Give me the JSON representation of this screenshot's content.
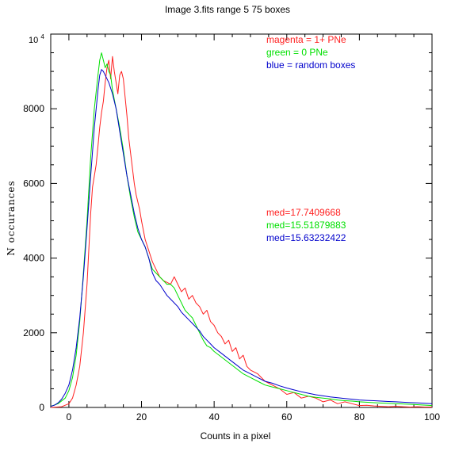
{
  "chart_data": {
    "type": "line",
    "title": "Image 3.fits   range 5    75 boxes",
    "xlabel": "Counts in a pixel",
    "ylabel": "N occurances",
    "xlim": [
      -5,
      100
    ],
    "ylim": [
      0,
      10000
    ],
    "x_ticks": [
      0,
      20,
      40,
      60,
      80,
      100
    ],
    "y_ticks": [
      0,
      2000,
      4000,
      6000,
      8000
    ],
    "y_top_label": {
      "base": "10",
      "exp": "4"
    },
    "grid": false,
    "legend_position": "top-right",
    "legend": [
      {
        "text": "magenta = 1+ PNe",
        "color": "#ff2020"
      },
      {
        "text": "green = 0 PNe",
        "color": "#00e000"
      },
      {
        "text": "blue = random boxes",
        "color": "#0000cc"
      }
    ],
    "annotations": [
      {
        "text": "med=17.7409668",
        "color": "#ff2020"
      },
      {
        "text": "med=15.51879883",
        "color": "#00e000"
      },
      {
        "text": "med=15.63232422",
        "color": "#0000cc"
      }
    ],
    "series": [
      {
        "color": "#ff2020",
        "points": [
          [
            -5,
            0
          ],
          [
            -2,
            20
          ],
          [
            0,
            100
          ],
          [
            1,
            250
          ],
          [
            2,
            600
          ],
          [
            3,
            1100
          ],
          [
            4,
            2000
          ],
          [
            5,
            3300
          ],
          [
            6,
            5200
          ],
          [
            6.5,
            5900
          ],
          [
            7,
            6200
          ],
          [
            7.5,
            6500
          ],
          [
            8,
            7000
          ],
          [
            8.5,
            7500
          ],
          [
            9,
            7900
          ],
          [
            9.5,
            8200
          ],
          [
            10,
            8700
          ],
          [
            10.5,
            9100
          ],
          [
            11,
            9300
          ],
          [
            11.5,
            8800
          ],
          [
            12,
            9400
          ],
          [
            12.5,
            9000
          ],
          [
            13,
            8700
          ],
          [
            13.5,
            8400
          ],
          [
            14,
            8900
          ],
          [
            14.5,
            9000
          ],
          [
            15,
            8800
          ],
          [
            15.5,
            8300
          ],
          [
            16,
            7800
          ],
          [
            16.5,
            7200
          ],
          [
            17,
            6800
          ],
          [
            17.5,
            6400
          ],
          [
            18,
            6000
          ],
          [
            18.5,
            5700
          ],
          [
            19,
            5500
          ],
          [
            19.5,
            5300
          ],
          [
            20,
            5000
          ],
          [
            21,
            4500
          ],
          [
            22,
            4200
          ],
          [
            23,
            3900
          ],
          [
            24,
            3700
          ],
          [
            25,
            3500
          ],
          [
            26,
            3400
          ],
          [
            27,
            3350
          ],
          [
            28,
            3300
          ],
          [
            29,
            3500
          ],
          [
            30,
            3300
          ],
          [
            31,
            3100
          ],
          [
            32,
            3200
          ],
          [
            33,
            2900
          ],
          [
            34,
            3000
          ],
          [
            35,
            2800
          ],
          [
            36,
            2700
          ],
          [
            37,
            2500
          ],
          [
            38,
            2600
          ],
          [
            39,
            2300
          ],
          [
            40,
            2200
          ],
          [
            41,
            2000
          ],
          [
            42,
            1900
          ],
          [
            43,
            1700
          ],
          [
            44,
            1800
          ],
          [
            45,
            1500
          ],
          [
            46,
            1600
          ],
          [
            47,
            1300
          ],
          [
            48,
            1400
          ],
          [
            49,
            1100
          ],
          [
            50,
            1000
          ],
          [
            52,
            900
          ],
          [
            54,
            700
          ],
          [
            56,
            600
          ],
          [
            58,
            500
          ],
          [
            60,
            350
          ],
          [
            62,
            400
          ],
          [
            64,
            250
          ],
          [
            66,
            300
          ],
          [
            68,
            250
          ],
          [
            70,
            150
          ],
          [
            72,
            200
          ],
          [
            74,
            100
          ],
          [
            76,
            150
          ],
          [
            78,
            100
          ],
          [
            80,
            50
          ],
          [
            82,
            60
          ],
          [
            84,
            40
          ],
          [
            86,
            30
          ],
          [
            88,
            20
          ],
          [
            90,
            30
          ],
          [
            92,
            20
          ],
          [
            94,
            10
          ],
          [
            96,
            20
          ],
          [
            98,
            10
          ],
          [
            100,
            10
          ]
        ]
      },
      {
        "color": "#00e000",
        "points": [
          [
            -5,
            30
          ],
          [
            -3,
            100
          ],
          [
            -1,
            250
          ],
          [
            0,
            450
          ],
          [
            1,
            800
          ],
          [
            2,
            1400
          ],
          [
            3,
            2300
          ],
          [
            4,
            3600
          ],
          [
            5,
            5000
          ],
          [
            6,
            6700
          ],
          [
            7,
            8000
          ],
          [
            8,
            8900
          ],
          [
            8.5,
            9300
          ],
          [
            9,
            9500
          ],
          [
            9.5,
            9300
          ],
          [
            10,
            9100
          ],
          [
            10.5,
            9200
          ],
          [
            11,
            9000
          ],
          [
            11.5,
            8900
          ],
          [
            12,
            8500
          ],
          [
            13,
            8000
          ],
          [
            14,
            7500
          ],
          [
            15,
            6900
          ],
          [
            16,
            6200
          ],
          [
            17,
            5600
          ],
          [
            18,
            5100
          ],
          [
            19,
            4700
          ],
          [
            20,
            4500
          ],
          [
            21,
            4300
          ],
          [
            22,
            4000
          ],
          [
            23,
            3700
          ],
          [
            24,
            3600
          ],
          [
            25,
            3500
          ],
          [
            26,
            3400
          ],
          [
            27,
            3300
          ],
          [
            28,
            3300
          ],
          [
            29,
            3200
          ],
          [
            30,
            3000
          ],
          [
            31,
            2800
          ],
          [
            32,
            2600
          ],
          [
            33,
            2500
          ],
          [
            34,
            2400
          ],
          [
            35,
            2200
          ],
          [
            36,
            2000
          ],
          [
            37,
            1800
          ],
          [
            38,
            1650
          ],
          [
            39,
            1600
          ],
          [
            40,
            1500
          ],
          [
            42,
            1350
          ],
          [
            44,
            1200
          ],
          [
            46,
            1050
          ],
          [
            48,
            900
          ],
          [
            50,
            800
          ],
          [
            52,
            700
          ],
          [
            54,
            600
          ],
          [
            56,
            550
          ],
          [
            58,
            500
          ],
          [
            60,
            450
          ],
          [
            62,
            400
          ],
          [
            64,
            350
          ],
          [
            66,
            300
          ],
          [
            68,
            270
          ],
          [
            70,
            250
          ],
          [
            72,
            230
          ],
          [
            74,
            200
          ],
          [
            76,
            180
          ],
          [
            78,
            170
          ],
          [
            80,
            150
          ],
          [
            85,
            120
          ],
          [
            90,
            100
          ],
          [
            95,
            80
          ],
          [
            100,
            50
          ]
        ]
      },
      {
        "color": "#0000cc",
        "points": [
          [
            -5,
            30
          ],
          [
            -4,
            60
          ],
          [
            -3,
            120
          ],
          [
            -2,
            220
          ],
          [
            -1,
            380
          ],
          [
            0,
            600
          ],
          [
            1,
            1000
          ],
          [
            2,
            1600
          ],
          [
            3,
            2400
          ],
          [
            4,
            3500
          ],
          [
            5,
            4800
          ],
          [
            6,
            6200
          ],
          [
            7,
            7500
          ],
          [
            8,
            8500
          ],
          [
            8.5,
            8900
          ],
          [
            9,
            9050
          ],
          [
            9.5,
            9000
          ],
          [
            10,
            8900
          ],
          [
            11,
            8700
          ],
          [
            12,
            8400
          ],
          [
            13,
            8000
          ],
          [
            14,
            7400
          ],
          [
            15,
            6800
          ],
          [
            16,
            6200
          ],
          [
            17,
            5700
          ],
          [
            18,
            5200
          ],
          [
            19,
            4800
          ],
          [
            20,
            4500
          ],
          [
            21,
            4300
          ],
          [
            22,
            4000
          ],
          [
            23,
            3600
          ],
          [
            24,
            3400
          ],
          [
            25,
            3300
          ],
          [
            26,
            3150
          ],
          [
            27,
            3000
          ],
          [
            28,
            2900
          ],
          [
            29,
            2800
          ],
          [
            30,
            2700
          ],
          [
            31,
            2550
          ],
          [
            32,
            2450
          ],
          [
            33,
            2350
          ],
          [
            34,
            2250
          ],
          [
            35,
            2150
          ],
          [
            36,
            2050
          ],
          [
            37,
            1900
          ],
          [
            38,
            1800
          ],
          [
            39,
            1700
          ],
          [
            40,
            1600
          ],
          [
            42,
            1450
          ],
          [
            44,
            1300
          ],
          [
            46,
            1150
          ],
          [
            48,
            1000
          ],
          [
            50,
            900
          ],
          [
            52,
            800
          ],
          [
            54,
            700
          ],
          [
            56,
            650
          ],
          [
            58,
            580
          ],
          [
            60,
            520
          ],
          [
            62,
            470
          ],
          [
            64,
            420
          ],
          [
            66,
            380
          ],
          [
            68,
            340
          ],
          [
            70,
            310
          ],
          [
            72,
            280
          ],
          [
            74,
            260
          ],
          [
            76,
            240
          ],
          [
            78,
            220
          ],
          [
            80,
            200
          ],
          [
            82,
            190
          ],
          [
            84,
            180
          ],
          [
            86,
            170
          ],
          [
            88,
            160
          ],
          [
            90,
            150
          ],
          [
            92,
            140
          ],
          [
            94,
            130
          ],
          [
            96,
            120
          ],
          [
            98,
            110
          ],
          [
            100,
            100
          ]
        ]
      }
    ]
  }
}
